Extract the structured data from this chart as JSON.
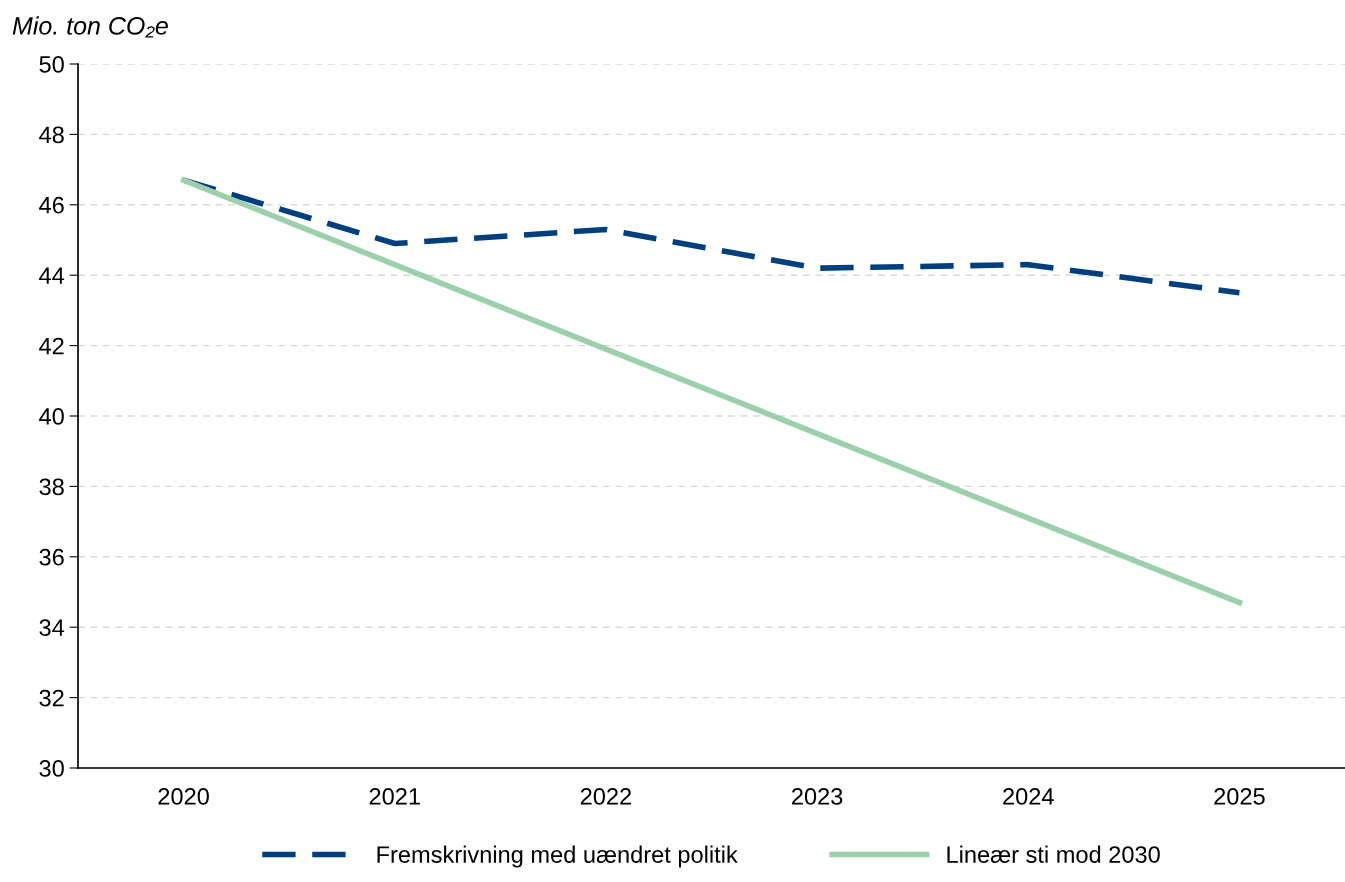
{
  "chart_data": {
    "type": "line",
    "ylabel": "Mio. ton CO₂e",
    "categories": [
      "2020",
      "2021",
      "2022",
      "2023",
      "2024",
      "2025"
    ],
    "series": [
      {
        "name": "Fremskrivning med uændret politik",
        "color": "#003f7d",
        "line_style": "dashed",
        "values": [
          46.7,
          44.9,
          45.3,
          44.2,
          44.3,
          43.5
        ]
      },
      {
        "name": "Lineær sti mod 2030",
        "color": "#9dcfad",
        "line_style": "solid",
        "values": [
          46.7,
          44.3,
          41.9,
          39.5,
          37.1,
          34.7
        ]
      }
    ],
    "ylim": [
      30,
      50
    ],
    "yticks": [
      30,
      32,
      34,
      36,
      38,
      40,
      42,
      44,
      46,
      48,
      50
    ],
    "grid": "y",
    "legend": "bottom",
    "marker": "none"
  }
}
